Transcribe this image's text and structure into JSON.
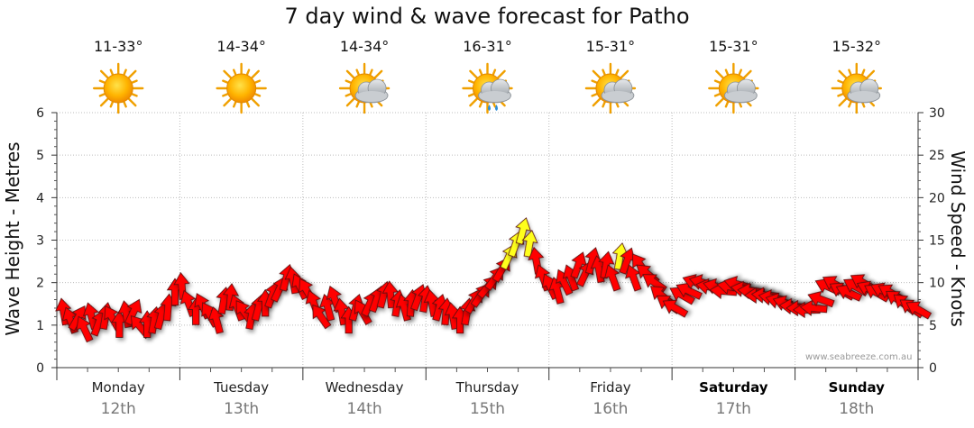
{
  "chart_data": {
    "type": "line",
    "title": "7 day wind & wave forecast for Patho",
    "ylabel_left": "Wave Height - Metres",
    "ylabel_right": "Wind Speed - Knots",
    "y_left_lim": [
      0,
      6
    ],
    "y_left_ticks": [
      "0",
      "1",
      "2",
      "3",
      "4",
      "5",
      "6"
    ],
    "y_right_lim": [
      0,
      30
    ],
    "y_right_ticks": [
      "0",
      "5",
      "10",
      "15",
      "20",
      "25",
      "30"
    ],
    "days": [
      {
        "day": "Monday",
        "date": "12th",
        "temp": "11-33°",
        "weather": "sunny",
        "weekend": false
      },
      {
        "day": "Tuesday",
        "date": "13th",
        "temp": "14-34°",
        "weather": "sunny",
        "weekend": false
      },
      {
        "day": "Wednesday",
        "date": "14th",
        "temp": "14-34°",
        "weather": "partly-cloudy",
        "weekend": false
      },
      {
        "day": "Thursday",
        "date": "15th",
        "temp": "16-31°",
        "weather": "cloudy-showers",
        "weekend": false
      },
      {
        "day": "Friday",
        "date": "16th",
        "temp": "15-31°",
        "weather": "partly-cloudy",
        "weekend": false
      },
      {
        "day": "Saturday",
        "date": "17th",
        "temp": "15-31°",
        "weather": "partly-cloudy",
        "weekend": true
      },
      {
        "day": "Sunday",
        "date": "18th",
        "temp": "15-32°",
        "weather": "partly-cloudy",
        "weekend": true
      }
    ],
    "series": [
      {
        "name": "Wind Speed (knots)",
        "x_units": "hours from Monday 00:00",
        "points": [
          {
            "h": 3,
            "v": 6.5,
            "dir": -10
          },
          {
            "h": 6,
            "v": 5.5,
            "dir": -20
          },
          {
            "h": 9,
            "v": 5.8,
            "dir": 30
          },
          {
            "h": 12,
            "v": 4.5,
            "dir": -25
          },
          {
            "h": 15,
            "v": 6.0,
            "dir": -15
          },
          {
            "h": 18,
            "v": 5.2,
            "dir": 20
          },
          {
            "h": 21,
            "v": 6.0,
            "dir": 10
          },
          {
            "h": 24,
            "v": 5.8,
            "dir": -30
          },
          {
            "h": 27,
            "v": 5.0,
            "dir": 0
          },
          {
            "h": 30,
            "v": 6.2,
            "dir": -10
          },
          {
            "h": 33,
            "v": 6.5,
            "dir": 25
          },
          {
            "h": 36,
            "v": 4.8,
            "dir": -40
          },
          {
            "h": 39,
            "v": 5.0,
            "dir": 0
          },
          {
            "h": 42,
            "v": 5.5,
            "dir": 10
          },
          {
            "h": 45,
            "v": 6.0,
            "dir": 15
          },
          {
            "h": 48,
            "v": 7.0,
            "dir": 5
          },
          {
            "h": 51,
            "v": 8.8,
            "dir": 0
          },
          {
            "h": 54,
            "v": 9.5,
            "dir": -5
          },
          {
            "h": 57,
            "v": 7.5,
            "dir": -20
          },
          {
            "h": 60,
            "v": 6.5,
            "dir": 0
          },
          {
            "h": 63,
            "v": 7.2,
            "dir": -25
          },
          {
            "h": 66,
            "v": 6.2,
            "dir": -30
          },
          {
            "h": 69,
            "v": 5.5,
            "dir": -15
          },
          {
            "h": 72,
            "v": 7.8,
            "dir": 10
          },
          {
            "h": 75,
            "v": 8.2,
            "dir": 5
          },
          {
            "h": 78,
            "v": 7.0,
            "dir": -20
          },
          {
            "h": 81,
            "v": 6.5,
            "dir": -35
          },
          {
            "h": 84,
            "v": 6.0,
            "dir": 10
          },
          {
            "h": 87,
            "v": 7.0,
            "dir": 15
          },
          {
            "h": 90,
            "v": 7.5,
            "dir": 0
          },
          {
            "h": 93,
            "v": 8.5,
            "dir": 20
          },
          {
            "h": 96,
            "v": 9.2,
            "dir": 25
          },
          {
            "h": 99,
            "v": 10.5,
            "dir": 15
          },
          {
            "h": 102,
            "v": 10.2,
            "dir": -10
          },
          {
            "h": 105,
            "v": 9.5,
            "dir": -25
          },
          {
            "h": 108,
            "v": 9.0,
            "dir": -30
          },
          {
            "h": 111,
            "v": 7.5,
            "dir": -20
          },
          {
            "h": 114,
            "v": 6.0,
            "dir": -35
          },
          {
            "h": 117,
            "v": 7.0,
            "dir": -15
          },
          {
            "h": 120,
            "v": 8.0,
            "dir": -20
          },
          {
            "h": 123,
            "v": 6.5,
            "dir": -10
          },
          {
            "h": 126,
            "v": 5.5,
            "dir": 0
          },
          {
            "h": 129,
            "v": 7.0,
            "dir": 15
          },
          {
            "h": 132,
            "v": 6.5,
            "dir": -30
          },
          {
            "h": 135,
            "v": 7.5,
            "dir": 25
          },
          {
            "h": 138,
            "v": 8.0,
            "dir": 20
          },
          {
            "h": 141,
            "v": 8.5,
            "dir": 15
          },
          {
            "h": 144,
            "v": 8.5,
            "dir": -5
          },
          {
            "h": 147,
            "v": 7.5,
            "dir": 10
          },
          {
            "h": 150,
            "v": 7.0,
            "dir": -15
          },
          {
            "h": 153,
            "v": 7.5,
            "dir": 5
          },
          {
            "h": 156,
            "v": 8.2,
            "dir": 20
          },
          {
            "h": 159,
            "v": 8.0,
            "dir": 10
          },
          {
            "h": 162,
            "v": 7.5,
            "dir": -10
          },
          {
            "h": 165,
            "v": 7.0,
            "dir": 15
          },
          {
            "h": 168,
            "v": 6.5,
            "dir": 5
          },
          {
            "h": 171,
            "v": 6.0,
            "dir": -10
          },
          {
            "h": 174,
            "v": 5.5,
            "dir": 0
          },
          {
            "h": 177,
            "v": 6.5,
            "dir": 10
          },
          {
            "h": 180,
            "v": 7.8,
            "dir": 30
          },
          {
            "h": 183,
            "v": 8.5,
            "dir": 35
          },
          {
            "h": 186,
            "v": 9.5,
            "dir": 40
          },
          {
            "h": 189,
            "v": 10.5,
            "dir": 35
          },
          {
            "h": 192,
            "v": 11.5,
            "dir": 30
          },
          {
            "h": 195,
            "v": 13.0,
            "dir": 25
          },
          {
            "h": 198,
            "v": 14.5,
            "dir": 20
          },
          {
            "h": 201,
            "v": 16.0,
            "dir": 15
          },
          {
            "h": 204,
            "v": 14.5,
            "dir": 10
          },
          {
            "h": 207,
            "v": 12.5,
            "dir": -10
          },
          {
            "h": 210,
            "v": 10.5,
            "dir": -20
          },
          {
            "h": 213,
            "v": 9.5,
            "dir": -25
          },
          {
            "h": 216,
            "v": 9.0,
            "dir": -15
          },
          {
            "h": 219,
            "v": 10.0,
            "dir": -25
          },
          {
            "h": 222,
            "v": 10.5,
            "dir": -20
          },
          {
            "h": 225,
            "v": 12.0,
            "dir": 20
          },
          {
            "h": 228,
            "v": 11.0,
            "dir": 25
          },
          {
            "h": 231,
            "v": 12.5,
            "dir": 15
          },
          {
            "h": 234,
            "v": 11.5,
            "dir": -10
          },
          {
            "h": 237,
            "v": 12.0,
            "dir": 10
          },
          {
            "h": 240,
            "v": 10.5,
            "dir": -20
          },
          {
            "h": 243,
            "v": 13.0,
            "dir": 10
          },
          {
            "h": 246,
            "v": 12.5,
            "dir": 20
          },
          {
            "h": 249,
            "v": 10.5,
            "dir": -20
          },
          {
            "h": 252,
            "v": 12.0,
            "dir": -35
          },
          {
            "h": 255,
            "v": 11.0,
            "dir": -50
          },
          {
            "h": 258,
            "v": 10.0,
            "dir": -55
          },
          {
            "h": 261,
            "v": 8.5,
            "dir": -50
          },
          {
            "h": 264,
            "v": 7.5,
            "dir": -55
          },
          {
            "h": 267,
            "v": 7.0,
            "dir": -60
          },
          {
            "h": 270,
            "v": 8.5,
            "dir": -60
          },
          {
            "h": 273,
            "v": 9.0,
            "dir": -65
          },
          {
            "h": 276,
            "v": 10.0,
            "dir": -70
          },
          {
            "h": 279,
            "v": 10.0,
            "dir": -75
          },
          {
            "h": 282,
            "v": 9.5,
            "dir": -80
          },
          {
            "h": 285,
            "v": 9.5,
            "dir": -75
          },
          {
            "h": 288,
            "v": 9.0,
            "dir": -85
          },
          {
            "h": 291,
            "v": 9.5,
            "dir": -80
          },
          {
            "h": 294,
            "v": 9.8,
            "dir": -75
          },
          {
            "h": 297,
            "v": 9.2,
            "dir": -80
          },
          {
            "h": 300,
            "v": 9.0,
            "dir": -85
          },
          {
            "h": 303,
            "v": 8.5,
            "dir": -90
          },
          {
            "h": 306,
            "v": 8.5,
            "dir": -85
          },
          {
            "h": 309,
            "v": 8.2,
            "dir": -80
          },
          {
            "h": 312,
            "v": 7.8,
            "dir": -75
          },
          {
            "h": 315,
            "v": 7.5,
            "dir": -70
          },
          {
            "h": 318,
            "v": 7.2,
            "dir": -85
          },
          {
            "h": 321,
            "v": 7.0,
            "dir": -90
          },
          {
            "h": 324,
            "v": 6.8,
            "dir": -90
          },
          {
            "h": 327,
            "v": 7.0,
            "dir": -85
          },
          {
            "h": 330,
            "v": 8.0,
            "dir": -70
          },
          {
            "h": 333,
            "v": 9.5,
            "dir": -65
          },
          {
            "h": 336,
            "v": 9.8,
            "dir": -60
          },
          {
            "h": 339,
            "v": 9.0,
            "dir": -60
          },
          {
            "h": 342,
            "v": 8.8,
            "dir": -65
          },
          {
            "h": 345,
            "v": 9.5,
            "dir": -60
          },
          {
            "h": 348,
            "v": 10.0,
            "dir": -60
          },
          {
            "h": 351,
            "v": 9.2,
            "dir": -65
          },
          {
            "h": 354,
            "v": 8.8,
            "dir": -60
          },
          {
            "h": 357,
            "v": 9.0,
            "dir": -65
          },
          {
            "h": 360,
            "v": 8.8,
            "dir": -60
          },
          {
            "h": 363,
            "v": 8.0,
            "dir": -55
          },
          {
            "h": 366,
            "v": 7.5,
            "dir": -50
          },
          {
            "h": 369,
            "v": 7.0,
            "dir": -55
          },
          {
            "h": 372,
            "v": 6.8,
            "dir": -60
          }
        ],
        "color_scale": [
          {
            "max_knots": 12.5,
            "color": "#ff0000"
          },
          {
            "max_knots": 99,
            "color": "#ffff1a"
          }
        ]
      }
    ],
    "grid": true,
    "hours_per_day": 53.1
  },
  "watermark": "www.seabreeze.com.au"
}
